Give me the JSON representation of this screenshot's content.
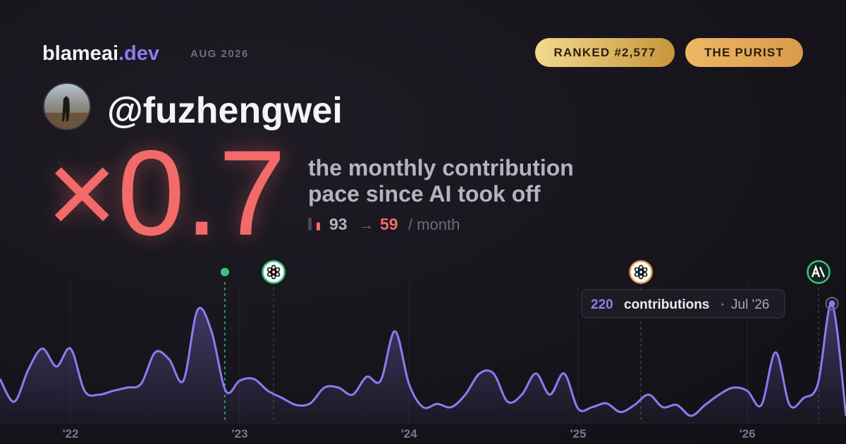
{
  "header": {
    "brand": "blameai",
    "brand_tld": ".dev",
    "period": "AUG 2026",
    "badges": [
      "RANKED #2,577",
      "THE PURIST"
    ]
  },
  "profile": {
    "handle": "@fuzhengwei"
  },
  "headline": {
    "multiplier": "×0.7",
    "description": [
      "the monthly contribution",
      "pace since AI took off"
    ],
    "before": 93,
    "arrow": "→",
    "after": 59,
    "unit": "/ month"
  },
  "chart_data": {
    "type": "area",
    "color": "#8b7cf0",
    "x": [
      2021.583,
      2021.667,
      2021.75,
      2021.833,
      2021.917,
      2022,
      2022.083,
      2022.167,
      2022.25,
      2022.333,
      2022.417,
      2022.5,
      2022.583,
      2022.667,
      2022.75,
      2022.833,
      2022.917,
      2023,
      2023.083,
      2023.167,
      2023.25,
      2023.333,
      2023.417,
      2023.5,
      2023.583,
      2023.667,
      2023.75,
      2023.833,
      2023.917,
      2024,
      2024.083,
      2024.167,
      2024.25,
      2024.333,
      2024.417,
      2024.5,
      2024.583,
      2024.667,
      2024.75,
      2024.833,
      2024.917,
      2025,
      2025.083,
      2025.167,
      2025.25,
      2025.333,
      2025.417,
      2025.5,
      2025.583,
      2025.667,
      2025.75,
      2025.833,
      2025.917,
      2026,
      2026.083,
      2026.167,
      2026.25,
      2026.333,
      2026.417,
      2026.5,
      2026.583
    ],
    "values": [
      81,
      39,
      98,
      137,
      104,
      137,
      59,
      52,
      59,
      65,
      72,
      130,
      117,
      78,
      208,
      169,
      59,
      78,
      81,
      59,
      46,
      33,
      36,
      65,
      65,
      52,
      85,
      78,
      169,
      72,
      29,
      35,
      29,
      52,
      91,
      91,
      39,
      52,
      91,
      52,
      91,
      26,
      29,
      36,
      20,
      33,
      52,
      29,
      33,
      13,
      33,
      52,
      65,
      59,
      33,
      130,
      33,
      46,
      72,
      220,
      13
    ],
    "xlim": [
      2021.583,
      2026.583
    ],
    "ylim": [
      0,
      260
    ],
    "xticks": [
      {
        "value": 2022,
        "label": "'22"
      },
      {
        "value": 2023,
        "label": "'23"
      },
      {
        "value": 2024,
        "label": "'24"
      },
      {
        "value": 2025,
        "label": "'25"
      },
      {
        "value": 2026,
        "label": "'26"
      }
    ],
    "grid": true,
    "markers": [
      {
        "x": 2022.912,
        "color": "#34c77b"
      },
      {
        "x": 2023.2,
        "color": "#34c77b"
      },
      {
        "x": 2025.371,
        "color": "#e0a15a"
      },
      {
        "x": 2026.421,
        "color": "#34c77b"
      }
    ],
    "tooltip": {
      "value": 220,
      "label": "contributions",
      "date": "Jul '26"
    }
  }
}
